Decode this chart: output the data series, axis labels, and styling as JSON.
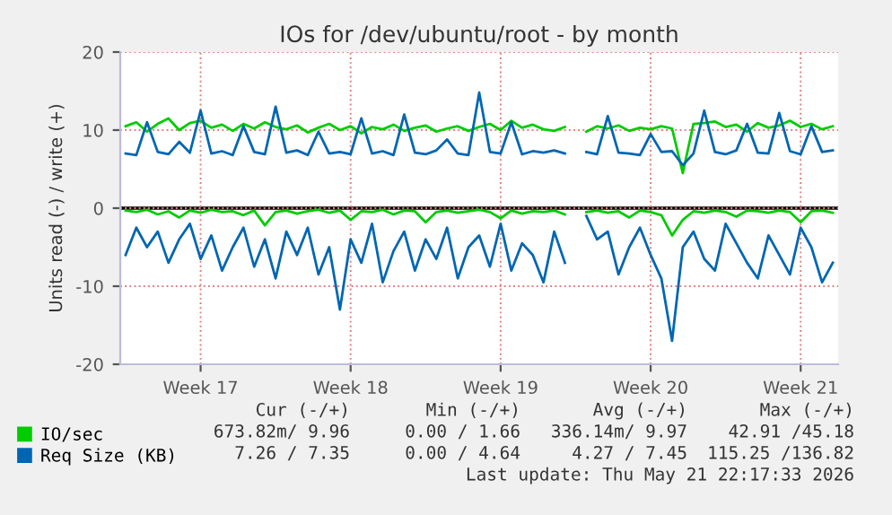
{
  "chart_data": {
    "type": "line",
    "title": "IOs for /dev/ubuntu/root - by month",
    "ylabel": "Units read (-) / write (+)",
    "categories": [
      null,
      null,
      null,
      null,
      null,
      null,
      null,
      "Week 17",
      null,
      null,
      null,
      null,
      null,
      null,
      null,
      null,
      null,
      null,
      null,
      null,
      null,
      "Week 18",
      null,
      null,
      null,
      null,
      null,
      null,
      null,
      null,
      null,
      null,
      null,
      null,
      null,
      "Week 19",
      null,
      null,
      null,
      null,
      null,
      null,
      null,
      null,
      null,
      null,
      null,
      null,
      null,
      "Week 20",
      null,
      null,
      null,
      null,
      null,
      null,
      null,
      null,
      null,
      null,
      null,
      null,
      null,
      "Week 21",
      null,
      null,
      null
    ],
    "ylim": [
      -20,
      20
    ],
    "yticks": [
      -20,
      -10,
      0,
      10,
      20
    ],
    "grid": true,
    "legend": "bottom left",
    "ref_lines": [
      {
        "axis": "y",
        "value": 0,
        "color": "#000000"
      }
    ],
    "series": [
      {
        "name": "IO/sec",
        "color": "#00cc00",
        "values": [
          10.5,
          11,
          9.8,
          10.8,
          11.5,
          10,
          10.9,
          11.2,
          10.3,
          10.7,
          9.9,
          10.8,
          10.2,
          11,
          10.4,
          10.1,
          10.6,
          9.7,
          10.3,
          10.8,
          10,
          10.5,
          9.6,
          10.4,
          10.1,
          10.7,
          9.9,
          10.3,
          10.6,
          9.8,
          10.2,
          10.5,
          9.9,
          10.4,
          10.8,
          10,
          11.2,
          10.3,
          10.7,
          10.1,
          9.9,
          10.4,
          null,
          9.8,
          10.5,
          10.2,
          10.6,
          9.9,
          10.3,
          10.1,
          10.5,
          10.2,
          4.5,
          10.8,
          10.9,
          11.1,
          10.4,
          10.7,
          9.8,
          10.9,
          10.3,
          10.6,
          11.2,
          10.4,
          10.8,
          10.1,
          10.5
        ]
      },
      {
        "color": "#00cc00",
        "values": [
          -0.3,
          -0.5,
          -0.2,
          -0.8,
          -0.4,
          -1.2,
          -0.3,
          -0.6,
          -0.2,
          -0.5,
          -0.4,
          -0.9,
          -0.3,
          -2.2,
          -0.5,
          -0.3,
          -0.7,
          -0.4,
          -0.2,
          -0.6,
          -0.3,
          -1.5,
          -0.4,
          -0.5,
          -0.2,
          -0.8,
          -0.3,
          -0.4,
          -1.8,
          -0.5,
          -0.3,
          -0.6,
          -0.4,
          -0.2,
          -0.5,
          -1.3,
          -0.3,
          -0.7,
          -0.4,
          -0.5,
          -0.3,
          -0.8,
          null,
          -0.5,
          -0.3,
          -0.6,
          -0.4,
          -1.2,
          -0.3,
          -0.5,
          -0.9,
          -3.5,
          -1.5,
          -0.4,
          -0.6,
          -0.3,
          -0.5,
          -1.1,
          -0.3,
          -0.4,
          -0.6,
          -0.3,
          -0.5,
          -1.8,
          -0.4,
          -0.3,
          -0.6
        ]
      },
      {
        "name": "Req Size (KB)",
        "color": "#0066b3",
        "values": [
          7,
          6.8,
          11,
          7.2,
          6.9,
          8.5,
          7.1,
          12.5,
          7,
          7.3,
          6.8,
          10.5,
          7.2,
          6.9,
          13,
          7.1,
          7.4,
          6.8,
          9.8,
          7,
          7.2,
          6.9,
          11.5,
          7,
          7.3,
          6.8,
          12,
          7.1,
          6.9,
          7.4,
          8.8,
          7,
          6.8,
          14.8,
          7.2,
          7,
          11,
          6.9,
          7.3,
          7.1,
          7.4,
          7,
          null,
          7.2,
          6.9,
          11.8,
          7.1,
          7,
          6.8,
          9.5,
          7.2,
          7.3,
          5.5,
          7,
          12.5,
          7.2,
          6.9,
          7.4,
          10.8,
          7.1,
          7,
          12.2,
          7.3,
          6.9,
          10.5,
          7.2,
          7.4
        ]
      },
      {
        "color": "#0066b3",
        "values": [
          -6,
          -2.5,
          -5,
          -3,
          -7,
          -4,
          -2,
          -6.5,
          -3.5,
          -8,
          -5,
          -2.5,
          -7.5,
          -4,
          -9,
          -3,
          -6,
          -2.5,
          -8.5,
          -5,
          -13,
          -4,
          -7,
          -2,
          -9.5,
          -5.5,
          -3,
          -8,
          -4,
          -6.5,
          -2.5,
          -9,
          -5,
          -3.5,
          -7.5,
          -2,
          -8,
          -4.5,
          -6,
          -9.5,
          -3,
          -7,
          null,
          -1,
          -4,
          -3,
          -8.5,
          -5,
          -2.5,
          -6,
          -9,
          -17,
          -5,
          -3,
          -6.5,
          -8,
          -2,
          -4.5,
          -7,
          -9,
          -3.5,
          -6,
          -8.5,
          -2.5,
          -5,
          -9.5,
          -7
        ]
      }
    ],
    "annotations": [
      "Cur (-/+)",
      "Min (-/+)",
      "Avg (-/+)",
      "Max (-/+)",
      "673.82m/ 9.96",
      "0.00 / 1.66",
      "336.14m/ 9.97",
      "42.91 /45.18",
      "7.26 / 7.35",
      "0.00 / 4.64",
      "4.27 / 7.45",
      "115.25 /136.82",
      "Last update: Thu May 21 22:17:33 2026"
    ]
  }
}
